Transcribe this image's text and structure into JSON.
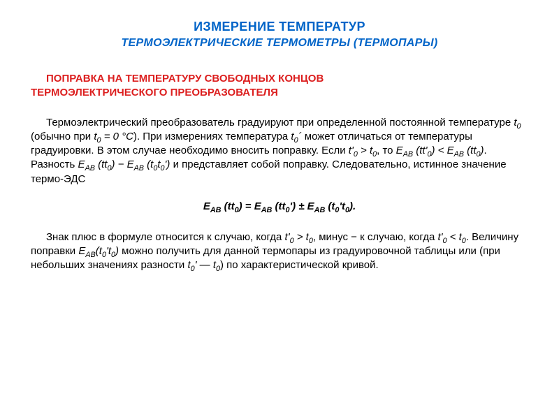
{
  "colors": {
    "title": "#0064c8",
    "section": "#dc1e1e",
    "body": "#000000",
    "background": "#ffffff"
  },
  "typography": {
    "title1_fontsize": 18,
    "title2_fontsize": 16,
    "section_fontsize": 15,
    "body_fontsize": 15,
    "formula_fontsize": 15,
    "font_family": "Arial"
  },
  "title1": "ИЗМЕРЕНИЕ ТЕМПЕРАТУР",
  "title2": "ТЕРМОЭЛЕКТРИЧЕСКИЕ ТЕРМОМЕТРЫ  (ТЕРМОПАРЫ)",
  "section_line1": "ПОПРАВКА НА ТЕМПЕРАТУРУ СВОБОДНЫХ КОНЦОВ",
  "section_line2": "ТЕРМОЭЛЕКТРИЧЕСКОГО ПРЕОБРАЗОВАТЕЛЯ",
  "para1_html": "Термоэлектрический преобразователь градуируют при определенной постоянной температуре <i>t<span class=\"sub\">0</span></i> (обычно при <i>t<span class=\"sub\">0</span> = 0 °С</i>). При измерениях температура <i>t<span class=\"sub\">0</span>´</i> может отличаться от температуры градуировки. В этом случае необходимо вносить поправку. Если <i>t'<span class=\"sub\">0</span> &gt; t<span class=\"sub\">0</span></i>, то <i>Е<span class=\"sub\">АВ</span> (tt'<span class=\"sub\">0</span>) &lt; Е<span class=\"sub\">АВ</span> (tt<span class=\"sub\">0</span>)</i>. Разность <i>Е<span class=\"sub\">АВ</span> (tt<span class=\"sub\">0</span>) − Е<span class=\"sub\">АВ</span> (t<span class=\"sub\">0</span>t<span class=\"sub\">0</span>')</i> и представляет собой поправку. Следовательно, истинное значение термо-ЭДС",
  "formula_html": "Е<span class=\"sub\">АВ</span> (tt<span class=\"sub\">0</span>) = Е<span class=\"sub\">АВ</span> (tt<span class=\"sub\">0</span>') ± Е<span class=\"sub\">АВ</span> (t<span class=\"sub\">0</span>'t<span class=\"sub\">0</span>).",
  "para2_html": "Знак плюс в формуле относится к случаю, когда <i>t'<span class=\"sub\">0</span> &gt; t<span class=\"sub\">0</span></i>, минус − к случаю, когда <i>t'<span class=\"sub\">0</span> &lt; t<span class=\"sub\">0</span></i>. Величину поправки <i>Е<span class=\"sub\">АВ</span>(t<span class=\"sub\">0</span>'t<span class=\"sub\">0</span>)</i> можно получить для данной термопары из градуировочной таблицы или (при небольших значениях разности <i>t<span class=\"sub\">0</span>' — t<span class=\"sub\">0</span></i>)  по характеристической кривой."
}
